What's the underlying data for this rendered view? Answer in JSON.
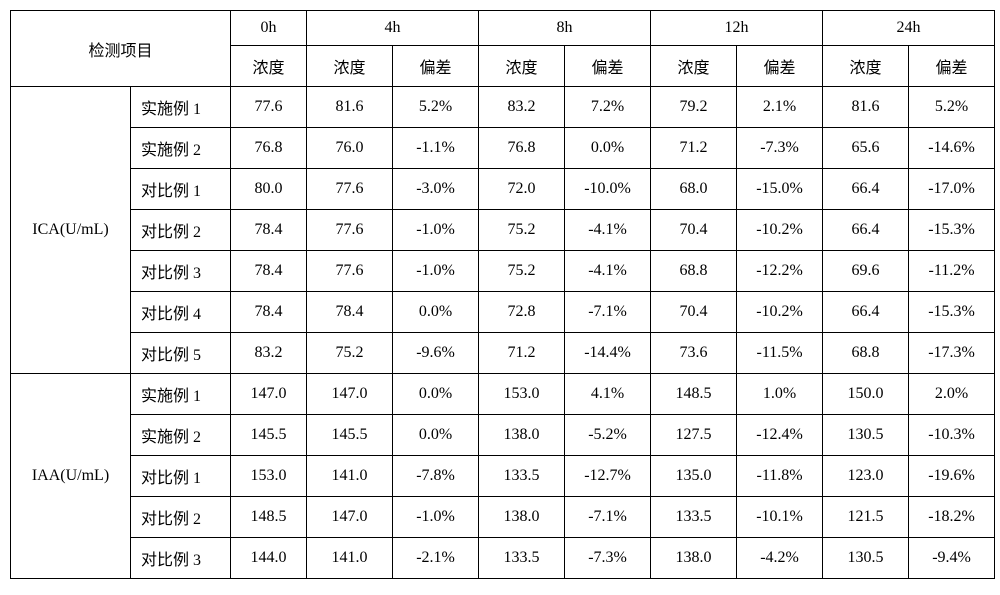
{
  "header": {
    "item_label": "检测项目",
    "time_points": [
      "0h",
      "4h",
      "8h",
      "12h",
      "24h"
    ],
    "conc_label": "浓度",
    "dev_label": "偏差"
  },
  "groups": [
    {
      "name": "ICA(U/mL)",
      "rows": [
        {
          "sample": "实施例 1",
          "c0": "77.6",
          "c4": "81.6",
          "d4": "5.2%",
          "c8": "83.2",
          "d8": "7.2%",
          "c12": "79.2",
          "d12": "2.1%",
          "c24": "81.6",
          "d24": "5.2%"
        },
        {
          "sample": "实施例 2",
          "c0": "76.8",
          "c4": "76.0",
          "d4": "-1.1%",
          "c8": "76.8",
          "d8": "0.0%",
          "c12": "71.2",
          "d12": "-7.3%",
          "c24": "65.6",
          "d24": "-14.6%"
        },
        {
          "sample": "对比例 1",
          "c0": "80.0",
          "c4": "77.6",
          "d4": "-3.0%",
          "c8": "72.0",
          "d8": "-10.0%",
          "c12": "68.0",
          "d12": "-15.0%",
          "c24": "66.4",
          "d24": "-17.0%"
        },
        {
          "sample": "对比例 2",
          "c0": "78.4",
          "c4": "77.6",
          "d4": "-1.0%",
          "c8": "75.2",
          "d8": "-4.1%",
          "c12": "70.4",
          "d12": "-10.2%",
          "c24": "66.4",
          "d24": "-15.3%"
        },
        {
          "sample": "对比例 3",
          "c0": "78.4",
          "c4": "77.6",
          "d4": "-1.0%",
          "c8": "75.2",
          "d8": "-4.1%",
          "c12": "68.8",
          "d12": "-12.2%",
          "c24": "69.6",
          "d24": "-11.2%"
        },
        {
          "sample": "对比例 4",
          "c0": "78.4",
          "c4": "78.4",
          "d4": "0.0%",
          "c8": "72.8",
          "d8": "-7.1%",
          "c12": "70.4",
          "d12": "-10.2%",
          "c24": "66.4",
          "d24": "-15.3%"
        },
        {
          "sample": "对比例 5",
          "c0": "83.2",
          "c4": "75.2",
          "d4": "-9.6%",
          "c8": "71.2",
          "d8": "-14.4%",
          "c12": "73.6",
          "d12": "-11.5%",
          "c24": "68.8",
          "d24": "-17.3%"
        }
      ]
    },
    {
      "name": "IAA(U/mL)",
      "rows": [
        {
          "sample": "实施例 1",
          "c0": "147.0",
          "c4": "147.0",
          "d4": "0.0%",
          "c8": "153.0",
          "d8": "4.1%",
          "c12": "148.5",
          "d12": "1.0%",
          "c24": "150.0",
          "d24": "2.0%"
        },
        {
          "sample": "实施例 2",
          "c0": "145.5",
          "c4": "145.5",
          "d4": "0.0%",
          "c8": "138.0",
          "d8": "-5.2%",
          "c12": "127.5",
          "d12": "-12.4%",
          "c24": "130.5",
          "d24": "-10.3%"
        },
        {
          "sample": "对比例 1",
          "c0": "153.0",
          "c4": "141.0",
          "d4": "-7.8%",
          "c8": "133.5",
          "d8": "-12.7%",
          "c12": "135.0",
          "d12": "-11.8%",
          "c24": "123.0",
          "d24": "-19.6%"
        },
        {
          "sample": "对比例 2",
          "c0": "148.5",
          "c4": "147.0",
          "d4": "-1.0%",
          "c8": "138.0",
          "d8": "-7.1%",
          "c12": "133.5",
          "d12": "-10.1%",
          "c24": "121.5",
          "d24": "-18.2%"
        },
        {
          "sample": "对比例 3",
          "c0": "144.0",
          "c4": "141.0",
          "d4": "-2.1%",
          "c8": "133.5",
          "d8": "-7.3%",
          "c12": "138.0",
          "d12": "-4.2%",
          "c24": "130.5",
          "d24": "-9.4%"
        }
      ]
    }
  ]
}
